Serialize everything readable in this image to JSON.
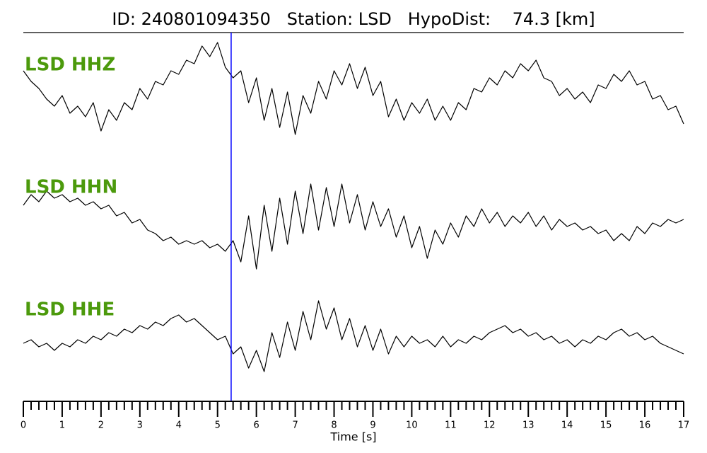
{
  "chart_data": {
    "type": "line",
    "title": "ID: 240801094350   Station: LSD   HypoDist:    74.3 [km]",
    "xlabel": "Time [s]",
    "xlim": [
      0,
      17
    ],
    "xticks": [
      0,
      1,
      2,
      3,
      4,
      5,
      6,
      7,
      8,
      9,
      10,
      11,
      12,
      13,
      14,
      15,
      16,
      17
    ],
    "xminorticks": [
      0.2,
      0.4,
      0.6,
      0.8,
      1.2,
      1.4,
      1.6,
      1.8,
      2.2,
      2.4,
      2.6,
      2.8,
      3.2,
      3.4,
      3.6,
      3.8,
      4.2,
      4.4,
      4.6,
      4.8,
      5.2,
      5.4,
      5.6,
      5.8,
      6.2,
      6.4,
      6.6,
      6.8,
      7.2,
      7.4,
      7.6,
      7.8,
      8.2,
      8.4,
      8.6,
      8.8,
      9.2,
      9.4,
      9.6,
      9.8,
      10.2,
      10.4,
      10.6,
      10.8,
      11.2,
      11.4,
      11.6,
      11.8,
      12.2,
      12.4,
      12.6,
      12.8,
      13.2,
      13.4,
      13.6,
      13.8,
      14.2,
      14.4,
      14.6,
      14.8,
      15.2,
      15.4,
      15.6,
      15.8,
      16.2,
      16.4,
      16.6,
      16.8
    ],
    "ylim": [
      -90,
      90
    ],
    "pick_time": 5.35,
    "pick_color": "#0000ff",
    "label_color": "#4c9a0c",
    "x": [
      0,
      0.2,
      0.4,
      0.6,
      0.8,
      1.0,
      1.2,
      1.4,
      1.6,
      1.8,
      2.0,
      2.2,
      2.4,
      2.6,
      2.8,
      3.0,
      3.2,
      3.4,
      3.6,
      3.8,
      4.0,
      4.2,
      4.4,
      4.6,
      4.8,
      5.0,
      5.2,
      5.4,
      5.6,
      5.8,
      6.0,
      6.2,
      6.4,
      6.6,
      6.8,
      7.0,
      7.2,
      7.4,
      7.6,
      7.8,
      8.0,
      8.2,
      8.4,
      8.6,
      8.8,
      9.0,
      9.2,
      9.4,
      9.6,
      9.8,
      10.0,
      10.2,
      10.4,
      10.6,
      10.8,
      11.0,
      11.2,
      11.4,
      11.6,
      11.8,
      12.0,
      12.2,
      12.4,
      12.6,
      12.8,
      13.0,
      13.2,
      13.4,
      13.6,
      13.8,
      14.0,
      14.2,
      14.4,
      14.6,
      14.8,
      15.0,
      15.2,
      15.4,
      15.6,
      15.8,
      16.0,
      16.2,
      16.4,
      16.6,
      16.8,
      17.0
    ],
    "series": [
      {
        "name": "LSD HHZ",
        "color": "#000000",
        "values": [
          30,
          15,
          5,
          -10,
          -20,
          -5,
          -30,
          -20,
          -35,
          -15,
          -55,
          -25,
          -40,
          -15,
          -25,
          5,
          -10,
          15,
          10,
          30,
          25,
          45,
          40,
          65,
          50,
          70,
          35,
          20,
          30,
          -15,
          20,
          -40,
          5,
          -50,
          0,
          -60,
          -5,
          -30,
          15,
          -10,
          30,
          10,
          40,
          5,
          35,
          -5,
          15,
          -35,
          -10,
          -40,
          -15,
          -30,
          -10,
          -40,
          -20,
          -40,
          -15,
          -25,
          5,
          0,
          20,
          10,
          30,
          20,
          40,
          30,
          45,
          20,
          15,
          -5,
          5,
          -10,
          0,
          -15,
          10,
          5,
          25,
          15,
          30,
          10,
          15,
          -10,
          -5,
          -25,
          -20,
          -45
        ]
      },
      {
        "name": "LSD HHN",
        "color": "#000000",
        "values": [
          20,
          35,
          25,
          40,
          30,
          35,
          25,
          30,
          20,
          25,
          15,
          20,
          5,
          10,
          -5,
          0,
          -15,
          -20,
          -30,
          -25,
          -35,
          -30,
          -35,
          -30,
          -40,
          -35,
          -45,
          -30,
          -60,
          5,
          -70,
          20,
          -45,
          30,
          -35,
          40,
          -20,
          50,
          -15,
          45,
          -10,
          50,
          -5,
          35,
          -15,
          25,
          -10,
          15,
          -25,
          5,
          -40,
          -10,
          -55,
          -15,
          -35,
          -5,
          -25,
          5,
          -10,
          15,
          -5,
          10,
          -10,
          5,
          -5,
          10,
          -10,
          5,
          -15,
          0,
          -10,
          -5,
          -15,
          -10,
          -20,
          -15,
          -30,
          -20,
          -30,
          -10,
          -20,
          -5,
          -10,
          0,
          -5,
          0
        ]
      },
      {
        "name": "LSD HHE",
        "color": "#000000",
        "values": [
          0,
          5,
          -5,
          0,
          -10,
          0,
          -5,
          5,
          0,
          10,
          5,
          15,
          10,
          20,
          15,
          25,
          20,
          30,
          25,
          35,
          40,
          30,
          35,
          25,
          15,
          5,
          10,
          -15,
          -5,
          -35,
          -10,
          -40,
          15,
          -20,
          30,
          -10,
          45,
          5,
          60,
          20,
          50,
          5,
          35,
          -5,
          25,
          -10,
          20,
          -15,
          10,
          -5,
          10,
          0,
          5,
          -5,
          10,
          -5,
          5,
          0,
          10,
          5,
          15,
          20,
          25,
          15,
          20,
          10,
          15,
          5,
          10,
          0,
          5,
          -5,
          5,
          0,
          10,
          5,
          15,
          20,
          10,
          15,
          5,
          10,
          0,
          -5,
          -10,
          -15
        ]
      }
    ]
  }
}
